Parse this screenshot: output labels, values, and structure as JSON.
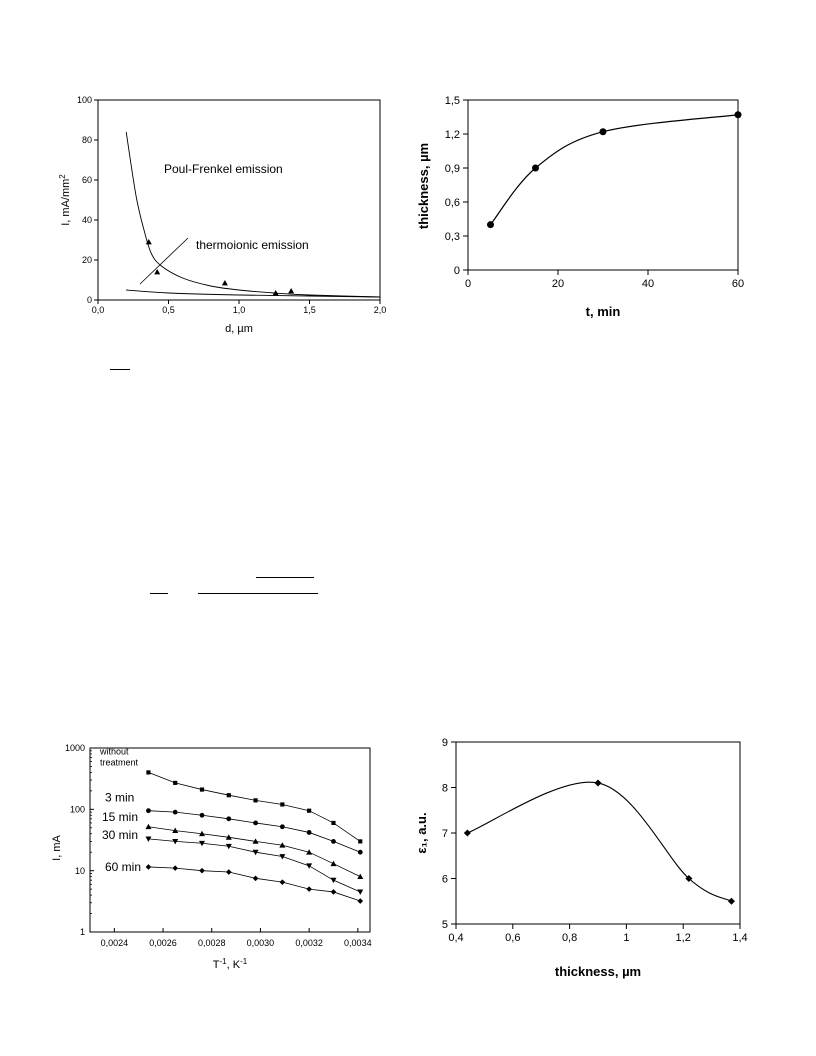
{
  "chart_data": [
    {
      "type": "line",
      "xlabel": "d, µm",
      "ylabel": "I, mA/mm",
      "ylabel_sup": "2",
      "xlim": [
        0,
        2
      ],
      "ylim": [
        0,
        100
      ],
      "x_ticks": [
        "0,0",
        "0,5",
        "1,0",
        "1,5",
        "2,0"
      ],
      "y_ticks": [
        "0",
        "20",
        "40",
        "60",
        "80",
        "100"
      ],
      "annotations": [
        "Poul-Frenkel emission",
        "thermoionic emission"
      ],
      "series": [
        {
          "x": [
            0.2,
            0.27,
            0.33,
            0.38,
            0.45,
            0.6,
            0.8,
            1.0,
            1.25,
            1.5,
            2.0
          ],
          "y": [
            84,
            52,
            34,
            23,
            17,
            11,
            7,
            5,
            3.5,
            2.5,
            1.5
          ]
        },
        {
          "x": [
            0.2,
            0.5,
            1.0,
            1.5,
            2.0
          ],
          "y": [
            5,
            3.5,
            2.5,
            2,
            1.5
          ]
        },
        {
          "x": [
            0.36,
            0.42,
            0.9,
            1.26,
            1.37
          ],
          "y": [
            29,
            14,
            8.5,
            3.5,
            4.5
          ]
        }
      ]
    },
    {
      "type": "line",
      "xlabel": "t, min",
      "ylabel": "thickness, µm",
      "xlim": [
        0,
        60
      ],
      "ylim": [
        0,
        1.5
      ],
      "x_ticks": [
        "0",
        "20",
        "40",
        "60"
      ],
      "y_ticks": [
        "0",
        "0,3",
        "0,6",
        "0,9",
        "1,2",
        "1,5"
      ],
      "series": [
        {
          "x": [
            5,
            15,
            30,
            60
          ],
          "y": [
            0.4,
            0.9,
            1.22,
            1.37
          ]
        }
      ]
    },
    {
      "type": "line",
      "scale_y": "log",
      "xlabel": "T",
      "xlabel_sup": "-1",
      "xlabel_suffix": ", K",
      "xlabel_sup2": "-1",
      "ylabel": "I, mA",
      "xlim": [
        0.0023,
        0.00345
      ],
      "ylim": [
        1,
        1000
      ],
      "x_ticks": [
        "0,0024",
        "0,0026",
        "0,0028",
        "0,0030",
        "0,0032",
        "0,0034"
      ],
      "y_ticks": [
        "1",
        "10",
        "100",
        "1000"
      ],
      "series": [
        {
          "name": "without treatment",
          "x": [
            0.00254,
            0.00265,
            0.00276,
            0.00287,
            0.00298,
            0.00309,
            0.0032,
            0.0033,
            0.00341
          ],
          "y": [
            400,
            270,
            210,
            170,
            140,
            120,
            95,
            60,
            30
          ]
        },
        {
          "name": "3 min",
          "x": [
            0.00254,
            0.00265,
            0.00276,
            0.00287,
            0.00298,
            0.00309,
            0.0032,
            0.0033,
            0.00341
          ],
          "y": [
            95,
            90,
            80,
            70,
            60,
            52,
            42,
            30,
            20
          ]
        },
        {
          "name": "15 min",
          "x": [
            0.00254,
            0.00265,
            0.00276,
            0.00287,
            0.00298,
            0.00309,
            0.0032,
            0.0033,
            0.00341
          ],
          "y": [
            52,
            45,
            40,
            35,
            30,
            26,
            20,
            13,
            8
          ]
        },
        {
          "name": "30 min",
          "x": [
            0.00254,
            0.00265,
            0.00276,
            0.00287,
            0.00298,
            0.00309,
            0.0032,
            0.0033,
            0.00341
          ],
          "y": [
            33,
            30,
            28,
            25,
            20,
            17,
            12,
            7,
            4.5
          ]
        },
        {
          "name": "60 min",
          "x": [
            0.00254,
            0.00265,
            0.00276,
            0.00287,
            0.00298,
            0.00309,
            0.0032,
            0.0033,
            0.00341
          ],
          "y": [
            11.5,
            11,
            10,
            9.5,
            7.5,
            6.5,
            5,
            4.5,
            3.2
          ]
        }
      ]
    },
    {
      "type": "line",
      "xlabel": "thickness, µm",
      "ylabel": "ε₁, a.u.",
      "xlim": [
        0.4,
        1.4
      ],
      "ylim": [
        5,
        9
      ],
      "x_ticks": [
        "0,4",
        "0,6",
        "0,8",
        "1",
        "1,2",
        "1,4"
      ],
      "y_ticks": [
        "5",
        "6",
        "7",
        "8",
        "9"
      ],
      "series": [
        {
          "x": [
            0.44,
            0.9,
            1.22,
            1.37
          ],
          "y": [
            7.0,
            8.1,
            6.0,
            5.5
          ]
        }
      ]
    }
  ]
}
